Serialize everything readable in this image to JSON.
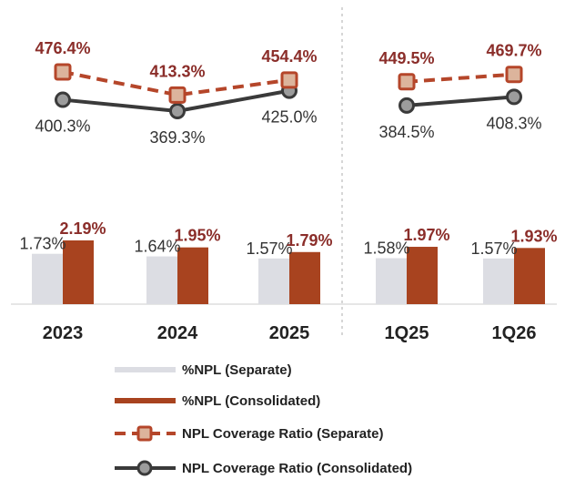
{
  "chart_data": {
    "type": "bar",
    "categories": [
      "2023",
      "2024",
      "2025",
      "1Q25",
      "1Q26"
    ],
    "series": [
      {
        "name": "%NPL (Separate)",
        "kind": "bar",
        "values": [
          1.73,
          1.64,
          1.57,
          1.58,
          1.57
        ],
        "labels": [
          "1.73%",
          "1.64%",
          "1.57%",
          "1.58%",
          "1.57%"
        ],
        "color": "#dcdde3"
      },
      {
        "name": "%NPL (Consolidated)",
        "kind": "bar",
        "values": [
          2.19,
          1.95,
          1.79,
          1.97,
          1.93
        ],
        "labels": [
          "2.19%",
          "1.95%",
          "1.79%",
          "1.97%",
          "1.93%"
        ],
        "color": "#a8431f"
      },
      {
        "name": "NPL Coverage Ratio (Separate)",
        "kind": "line",
        "style": "dashed",
        "values": [
          476.4,
          413.3,
          454.4,
          449.5,
          469.7
        ],
        "labels": [
          "476.4%",
          "413.3%",
          "454.4%",
          "449.5%",
          "469.7%"
        ],
        "color": "#b5462a"
      },
      {
        "name": "NPL Coverage Ratio (Consolidated)",
        "kind": "line",
        "style": "solid",
        "values": [
          400.3,
          369.3,
          425.0,
          384.5,
          408.3
        ],
        "labels": [
          "400.3%",
          "369.3%",
          "425.0%",
          "384.5%",
          "408.3%"
        ],
        "color": "#3a3a3a"
      }
    ],
    "groups": [
      [
        "2023",
        "2024",
        "2025"
      ],
      [
        "1Q25",
        "1Q26"
      ]
    ],
    "legend_position": "bottom",
    "grid": false,
    "colors": {
      "ratio_label": "#8b2e2a",
      "separate_label": "#333333",
      "divider": "#bbbbbb"
    }
  }
}
